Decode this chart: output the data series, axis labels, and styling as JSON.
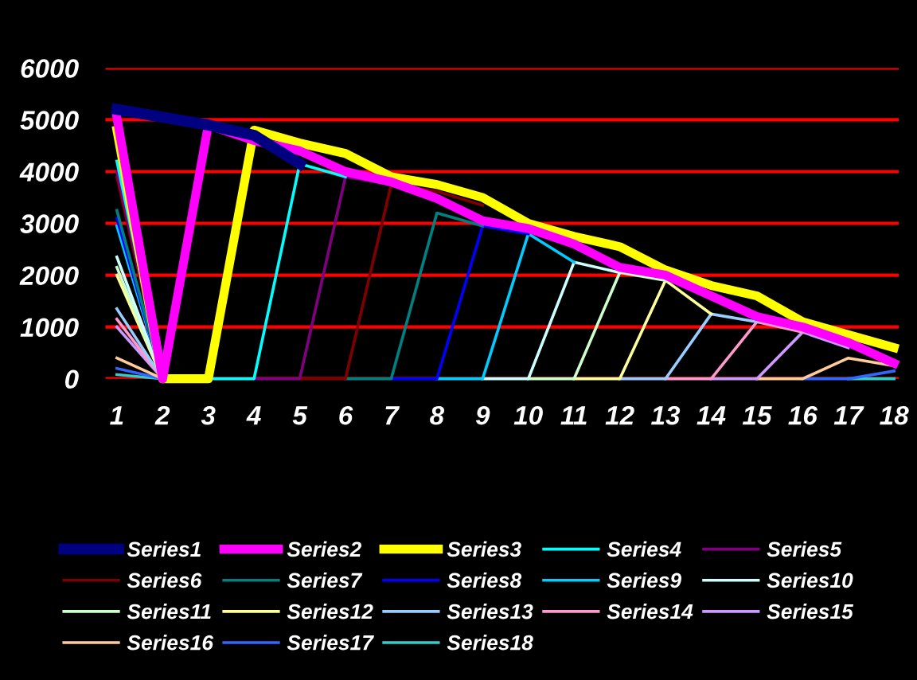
{
  "chart_data": {
    "type": "line",
    "categories": [
      "1",
      "2",
      "3",
      "4",
      "5",
      "6",
      "7",
      "8",
      "9",
      "10",
      "11",
      "12",
      "13",
      "14",
      "15",
      "16",
      "17",
      "18"
    ],
    "ylim": [
      0,
      6000
    ],
    "yticks": [
      0,
      1000,
      2000,
      3000,
      4000,
      5000,
      6000
    ],
    "grid": "y",
    "legend": "bottom",
    "marker": "none",
    "series": [
      {
        "name": "Series1",
        "color": "#000080",
        "values": [
          5200,
          5050,
          4900,
          4700,
          4150,
          null,
          null,
          null,
          null,
          null,
          null,
          null,
          null,
          null,
          null,
          null,
          null,
          null
        ]
      },
      {
        "name": "Series2",
        "color": "#ff00ff",
        "values": [
          5050,
          0,
          4900,
          4600,
          4400,
          4000,
          3800,
          3480,
          3050,
          2900,
          2600,
          2150,
          2000,
          1600,
          1200,
          1000,
          700,
          300
        ]
      },
      {
        "name": "Series3",
        "color": "#ffff00",
        "values": [
          4800,
          0,
          0,
          4800,
          4550,
          4350,
          3900,
          3750,
          3500,
          3000,
          2750,
          2550,
          2100,
          1800,
          1600,
          1100,
          850,
          600
        ]
      },
      {
        "name": "Series4",
        "color": "#00ffff",
        "values": [
          4200,
          0,
          0,
          0,
          4150,
          3900,
          null,
          null,
          null,
          null,
          null,
          null,
          null,
          null,
          null,
          null,
          null,
          null
        ]
      },
      {
        "name": "Series5",
        "color": "#800080",
        "values": [
          4000,
          0,
          null,
          0,
          0,
          3900,
          3750,
          null,
          null,
          null,
          null,
          null,
          null,
          null,
          null,
          null,
          null,
          null
        ]
      },
      {
        "name": "Series6",
        "color": "#800000",
        "values": [
          3900,
          0,
          null,
          null,
          0,
          0,
          3750,
          3620,
          3350,
          null,
          null,
          null,
          null,
          null,
          null,
          null,
          null,
          null
        ]
      },
      {
        "name": "Series7",
        "color": "#008080",
        "values": [
          3250,
          0,
          null,
          null,
          null,
          0,
          0,
          3200,
          2950,
          null,
          null,
          null,
          null,
          null,
          null,
          null,
          null,
          null
        ]
      },
      {
        "name": "Series8",
        "color": "#0000ff",
        "values": [
          3100,
          0,
          null,
          null,
          null,
          null,
          0,
          0,
          2950,
          2800,
          null,
          null,
          null,
          null,
          null,
          null,
          null,
          null
        ]
      },
      {
        "name": "Series9",
        "color": "#00ccff",
        "values": [
          2950,
          0,
          null,
          null,
          null,
          null,
          null,
          0,
          0,
          2800,
          2250,
          null,
          null,
          null,
          null,
          null,
          null,
          null
        ]
      },
      {
        "name": "Series10",
        "color": "#ccffff",
        "values": [
          2350,
          0,
          null,
          null,
          null,
          null,
          null,
          null,
          0,
          0,
          2250,
          2050,
          null,
          null,
          null,
          null,
          null,
          null
        ]
      },
      {
        "name": "Series11",
        "color": "#ccffcc",
        "values": [
          2150,
          0,
          null,
          null,
          null,
          null,
          null,
          null,
          null,
          0,
          0,
          2050,
          1900,
          null,
          null,
          null,
          null,
          null
        ]
      },
      {
        "name": "Series12",
        "color": "#ffff99",
        "values": [
          2000,
          0,
          null,
          null,
          null,
          null,
          null,
          null,
          null,
          null,
          0,
          0,
          1900,
          1250,
          null,
          null,
          null,
          null
        ]
      },
      {
        "name": "Series13",
        "color": "#99ccff",
        "values": [
          1350,
          0,
          null,
          null,
          null,
          null,
          null,
          null,
          null,
          null,
          null,
          0,
          0,
          1250,
          1100,
          null,
          null,
          null
        ]
      },
      {
        "name": "Series14",
        "color": "#ff99cc",
        "values": [
          1150,
          0,
          null,
          null,
          null,
          null,
          null,
          null,
          null,
          null,
          null,
          null,
          0,
          0,
          1100,
          900,
          null,
          null
        ]
      },
      {
        "name": "Series15",
        "color": "#cc99ff",
        "values": [
          1000,
          0,
          null,
          null,
          null,
          null,
          null,
          null,
          null,
          null,
          null,
          null,
          null,
          0,
          0,
          900,
          600,
          null
        ]
      },
      {
        "name": "Series16",
        "color": "#ffcc99",
        "values": [
          400,
          0,
          null,
          null,
          null,
          null,
          null,
          null,
          null,
          null,
          null,
          null,
          null,
          null,
          0,
          0,
          400,
          250
        ]
      },
      {
        "name": "Series17",
        "color": "#3366ff",
        "values": [
          200,
          0,
          null,
          null,
          null,
          null,
          null,
          null,
          null,
          null,
          null,
          null,
          null,
          null,
          null,
          0,
          0,
          150
        ]
      },
      {
        "name": "Series18",
        "color": "#33cccc",
        "values": [
          80,
          0,
          null,
          null,
          null,
          null,
          null,
          null,
          null,
          null,
          null,
          null,
          null,
          null,
          null,
          null,
          0,
          0
        ]
      }
    ]
  }
}
